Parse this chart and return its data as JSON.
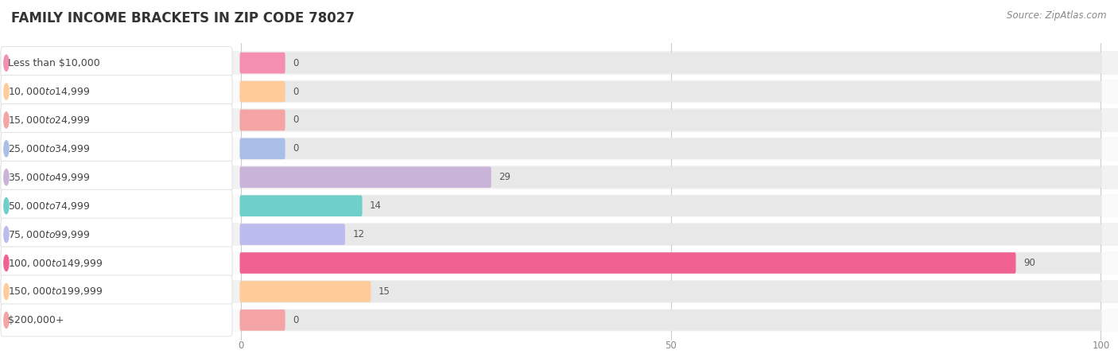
{
  "title": "FAMILY INCOME BRACKETS IN ZIP CODE 78027",
  "source": "Source: ZipAtlas.com",
  "categories": [
    "Less than $10,000",
    "$10,000 to $14,999",
    "$15,000 to $24,999",
    "$25,000 to $34,999",
    "$35,000 to $49,999",
    "$50,000 to $74,999",
    "$75,000 to $99,999",
    "$100,000 to $149,999",
    "$150,000 to $199,999",
    "$200,000+"
  ],
  "values": [
    0,
    0,
    0,
    0,
    29,
    14,
    12,
    90,
    15,
    0
  ],
  "bar_colors": [
    "#F48FB1",
    "#FFCC99",
    "#F4A4A4",
    "#AABFE8",
    "#C9B3D9",
    "#6ECFCB",
    "#BBBBEE",
    "#F06292",
    "#FFCC99",
    "#F4A4A4"
  ],
  "xlim": [
    0,
    100
  ],
  "xticks": [
    0,
    50,
    100
  ],
  "row_bg_even": "#f2f2f2",
  "row_bg_odd": "#fafafa",
  "title_fontsize": 12,
  "label_fontsize": 9,
  "value_fontsize": 8.5,
  "source_fontsize": 8.5
}
